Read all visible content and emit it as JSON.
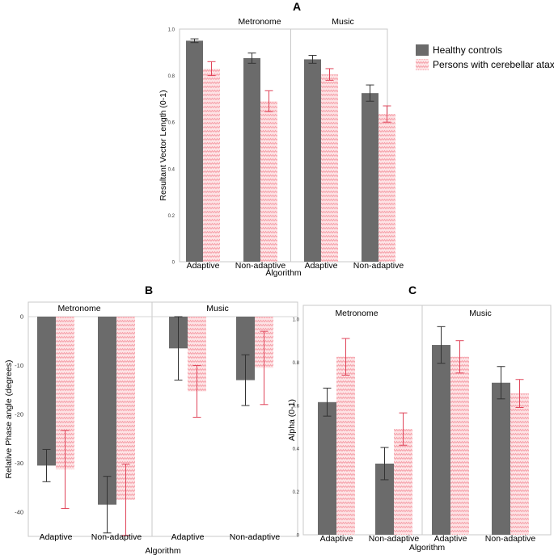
{
  "colors": {
    "healthy": "#6b6b6b",
    "healthy_error": "#333333",
    "ataxia_fill": "#fde3e5",
    "ataxia_pattern": "#f59aa4",
    "ataxia_error": "#e0455a"
  },
  "legend": {
    "healthy": "Healthy controls",
    "ataxia": "Persons with cerebellar ataxia"
  },
  "chart_data": [
    {
      "panel": "A",
      "type": "bar",
      "groups": [
        "Metronome",
        "Music"
      ],
      "categories": [
        "Adaptive",
        "Non-adaptive",
        "Adaptive",
        "Non-adaptive"
      ],
      "xlabel": "Algorithm",
      "ylabel": "Resultant Vector Length (0-1)",
      "ylim": [
        0,
        1
      ],
      "yticks": [
        "0",
        "0.2",
        "0.4",
        "0.6",
        "0.8",
        "1.0"
      ],
      "series": [
        {
          "name": "Healthy controls",
          "values": [
            0.95,
            0.875,
            0.87,
            0.725
          ],
          "errors": [
            0.008,
            0.022,
            0.017,
            0.035
          ]
        },
        {
          "name": "Persons with cerebellar ataxia",
          "values": [
            0.83,
            0.69,
            0.805,
            0.635
          ],
          "errors": [
            0.03,
            0.045,
            0.025,
            0.035
          ]
        }
      ]
    },
    {
      "panel": "B",
      "type": "bar",
      "groups": [
        "Metronome",
        "Music"
      ],
      "categories": [
        "Adaptive",
        "Non-adaptive",
        "Adaptive",
        "Non-adaptive"
      ],
      "xlabel": "Algorithm",
      "ylabel": "Relative Phase angle (degrees)",
      "ylim": [
        -45,
        0
      ],
      "yticks": [
        "0",
        "-10",
        "-20",
        "-30",
        "-40"
      ],
      "series": [
        {
          "name": "Healthy controls",
          "values": [
            -30.5,
            -38.5,
            -6.5,
            -13.0
          ],
          "errors": [
            3.3,
            5.8,
            6.5,
            5.2
          ]
        },
        {
          "name": "Persons with cerebellar ataxia",
          "values": [
            -31.3,
            -37.5,
            -15.3,
            -10.5
          ],
          "errors": [
            8.0,
            7.3,
            5.3,
            7.5
          ]
        }
      ]
    },
    {
      "panel": "C",
      "type": "bar",
      "groups": [
        "Metronome",
        "Music"
      ],
      "categories": [
        "Adaptive",
        "Non-adaptive",
        "Adaptive",
        "Non-adaptive"
      ],
      "xlabel": "Algorithm",
      "ylabel": "Alpha (0-1)",
      "ylim": [
        0,
        1
      ],
      "yticks": [
        "0",
        "0.2",
        "0.4",
        "0.6",
        "0.8",
        "1.0"
      ],
      "series": [
        {
          "name": "Healthy controls",
          "values": [
            0.615,
            0.33,
            0.88,
            0.705
          ],
          "errors": [
            0.065,
            0.075,
            0.085,
            0.075
          ]
        },
        {
          "name": "Persons with cerebellar ataxia",
          "values": [
            0.825,
            0.49,
            0.825,
            0.655
          ],
          "errors": [
            0.085,
            0.075,
            0.075,
            0.065
          ]
        }
      ]
    }
  ]
}
